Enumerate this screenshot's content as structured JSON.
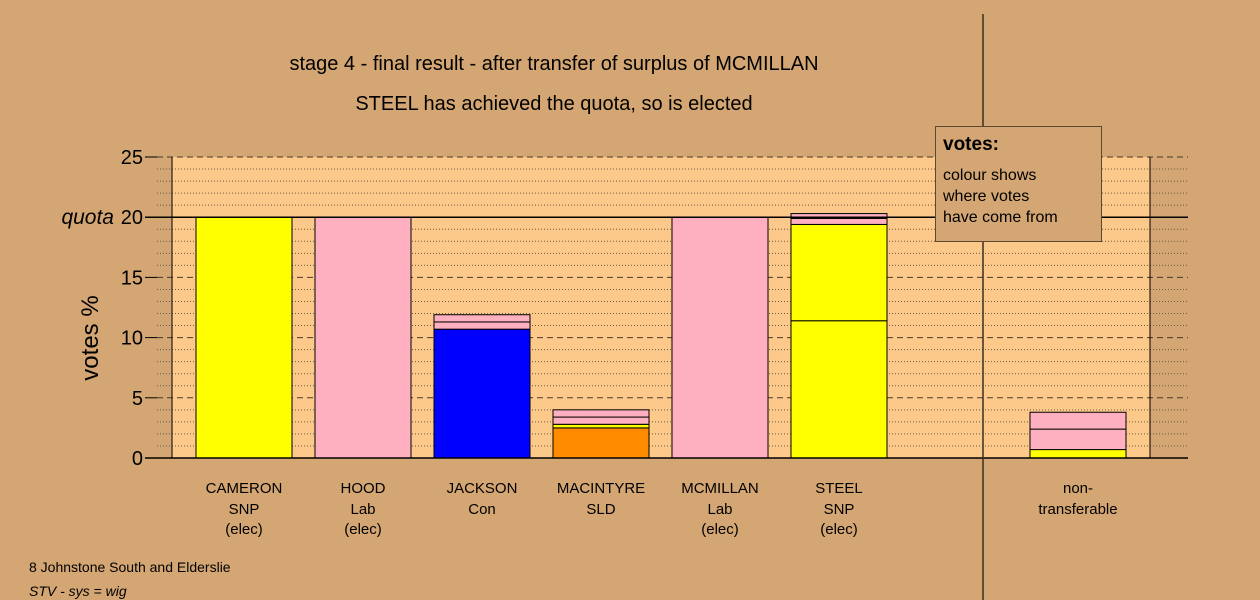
{
  "title_line1": "stage 4 - final result - after transfer of surplus of MCMILLAN",
  "title_line2": "STEEL has achieved the quota, so is elected",
  "legend": {
    "heading": "votes:",
    "lines": [
      "colour shows",
      "where votes",
      "have come from"
    ]
  },
  "footer": {
    "line1": "8 Johnstone South and Elderslie",
    "line2": "STV - sys = wig"
  },
  "colors": {
    "background": "#d4a673",
    "plot_area": "#fcc98a",
    "SNP": "#ffff00",
    "Lab": "#ffb0c0",
    "Con": "#0000ff",
    "SLD": "#ff8c00"
  },
  "chart_data": {
    "type": "bar",
    "stacked": true,
    "ylabel": "votes %",
    "ylim": [
      0,
      25
    ],
    "yticks": [
      0,
      5,
      10,
      15,
      20,
      25
    ],
    "quota": 20,
    "quota_label": "quota",
    "grid": true,
    "legend_position": "top-right",
    "candidates": [
      {
        "name": "CAMERON",
        "party": "SNP",
        "status": "(elec)",
        "segments": [
          {
            "source": "SNP",
            "value": 20
          }
        ]
      },
      {
        "name": "HOOD",
        "party": "Lab",
        "status": "(elec)",
        "segments": [
          {
            "source": "Lab",
            "value": 20
          }
        ]
      },
      {
        "name": "JACKSON",
        "party": "Con",
        "status": "",
        "segments": [
          {
            "source": "Con",
            "value": 10.7
          },
          {
            "source": "Lab",
            "value": 0.6
          },
          {
            "source": "Lab",
            "value": 0.6
          }
        ]
      },
      {
        "name": "MACINTYRE",
        "party": "SLD",
        "status": "",
        "segments": [
          {
            "source": "SLD",
            "value": 2.5
          },
          {
            "source": "SNP",
            "value": 0.3
          },
          {
            "source": "Lab",
            "value": 0.6
          },
          {
            "source": "Lab",
            "value": 0.6
          }
        ]
      },
      {
        "name": "MCMILLAN",
        "party": "Lab",
        "status": "(elec)",
        "segments": [
          {
            "source": "Lab",
            "value": 20
          }
        ]
      },
      {
        "name": "STEEL",
        "party": "SNP",
        "status": "(elec)",
        "segments": [
          {
            "source": "SNP",
            "value": 11.4
          },
          {
            "source": "SNP",
            "value": 8.0
          },
          {
            "source": "Lab",
            "value": 0.5
          },
          {
            "source": "Lab",
            "value": 0.4
          }
        ]
      }
    ],
    "non_transferable": {
      "label_line1": "non-",
      "label_line2": "transferable",
      "segments": [
        {
          "source": "SNP",
          "value": 0.7
        },
        {
          "source": "Lab",
          "value": 1.7
        },
        {
          "source": "Lab",
          "value": 1.4
        }
      ]
    }
  }
}
